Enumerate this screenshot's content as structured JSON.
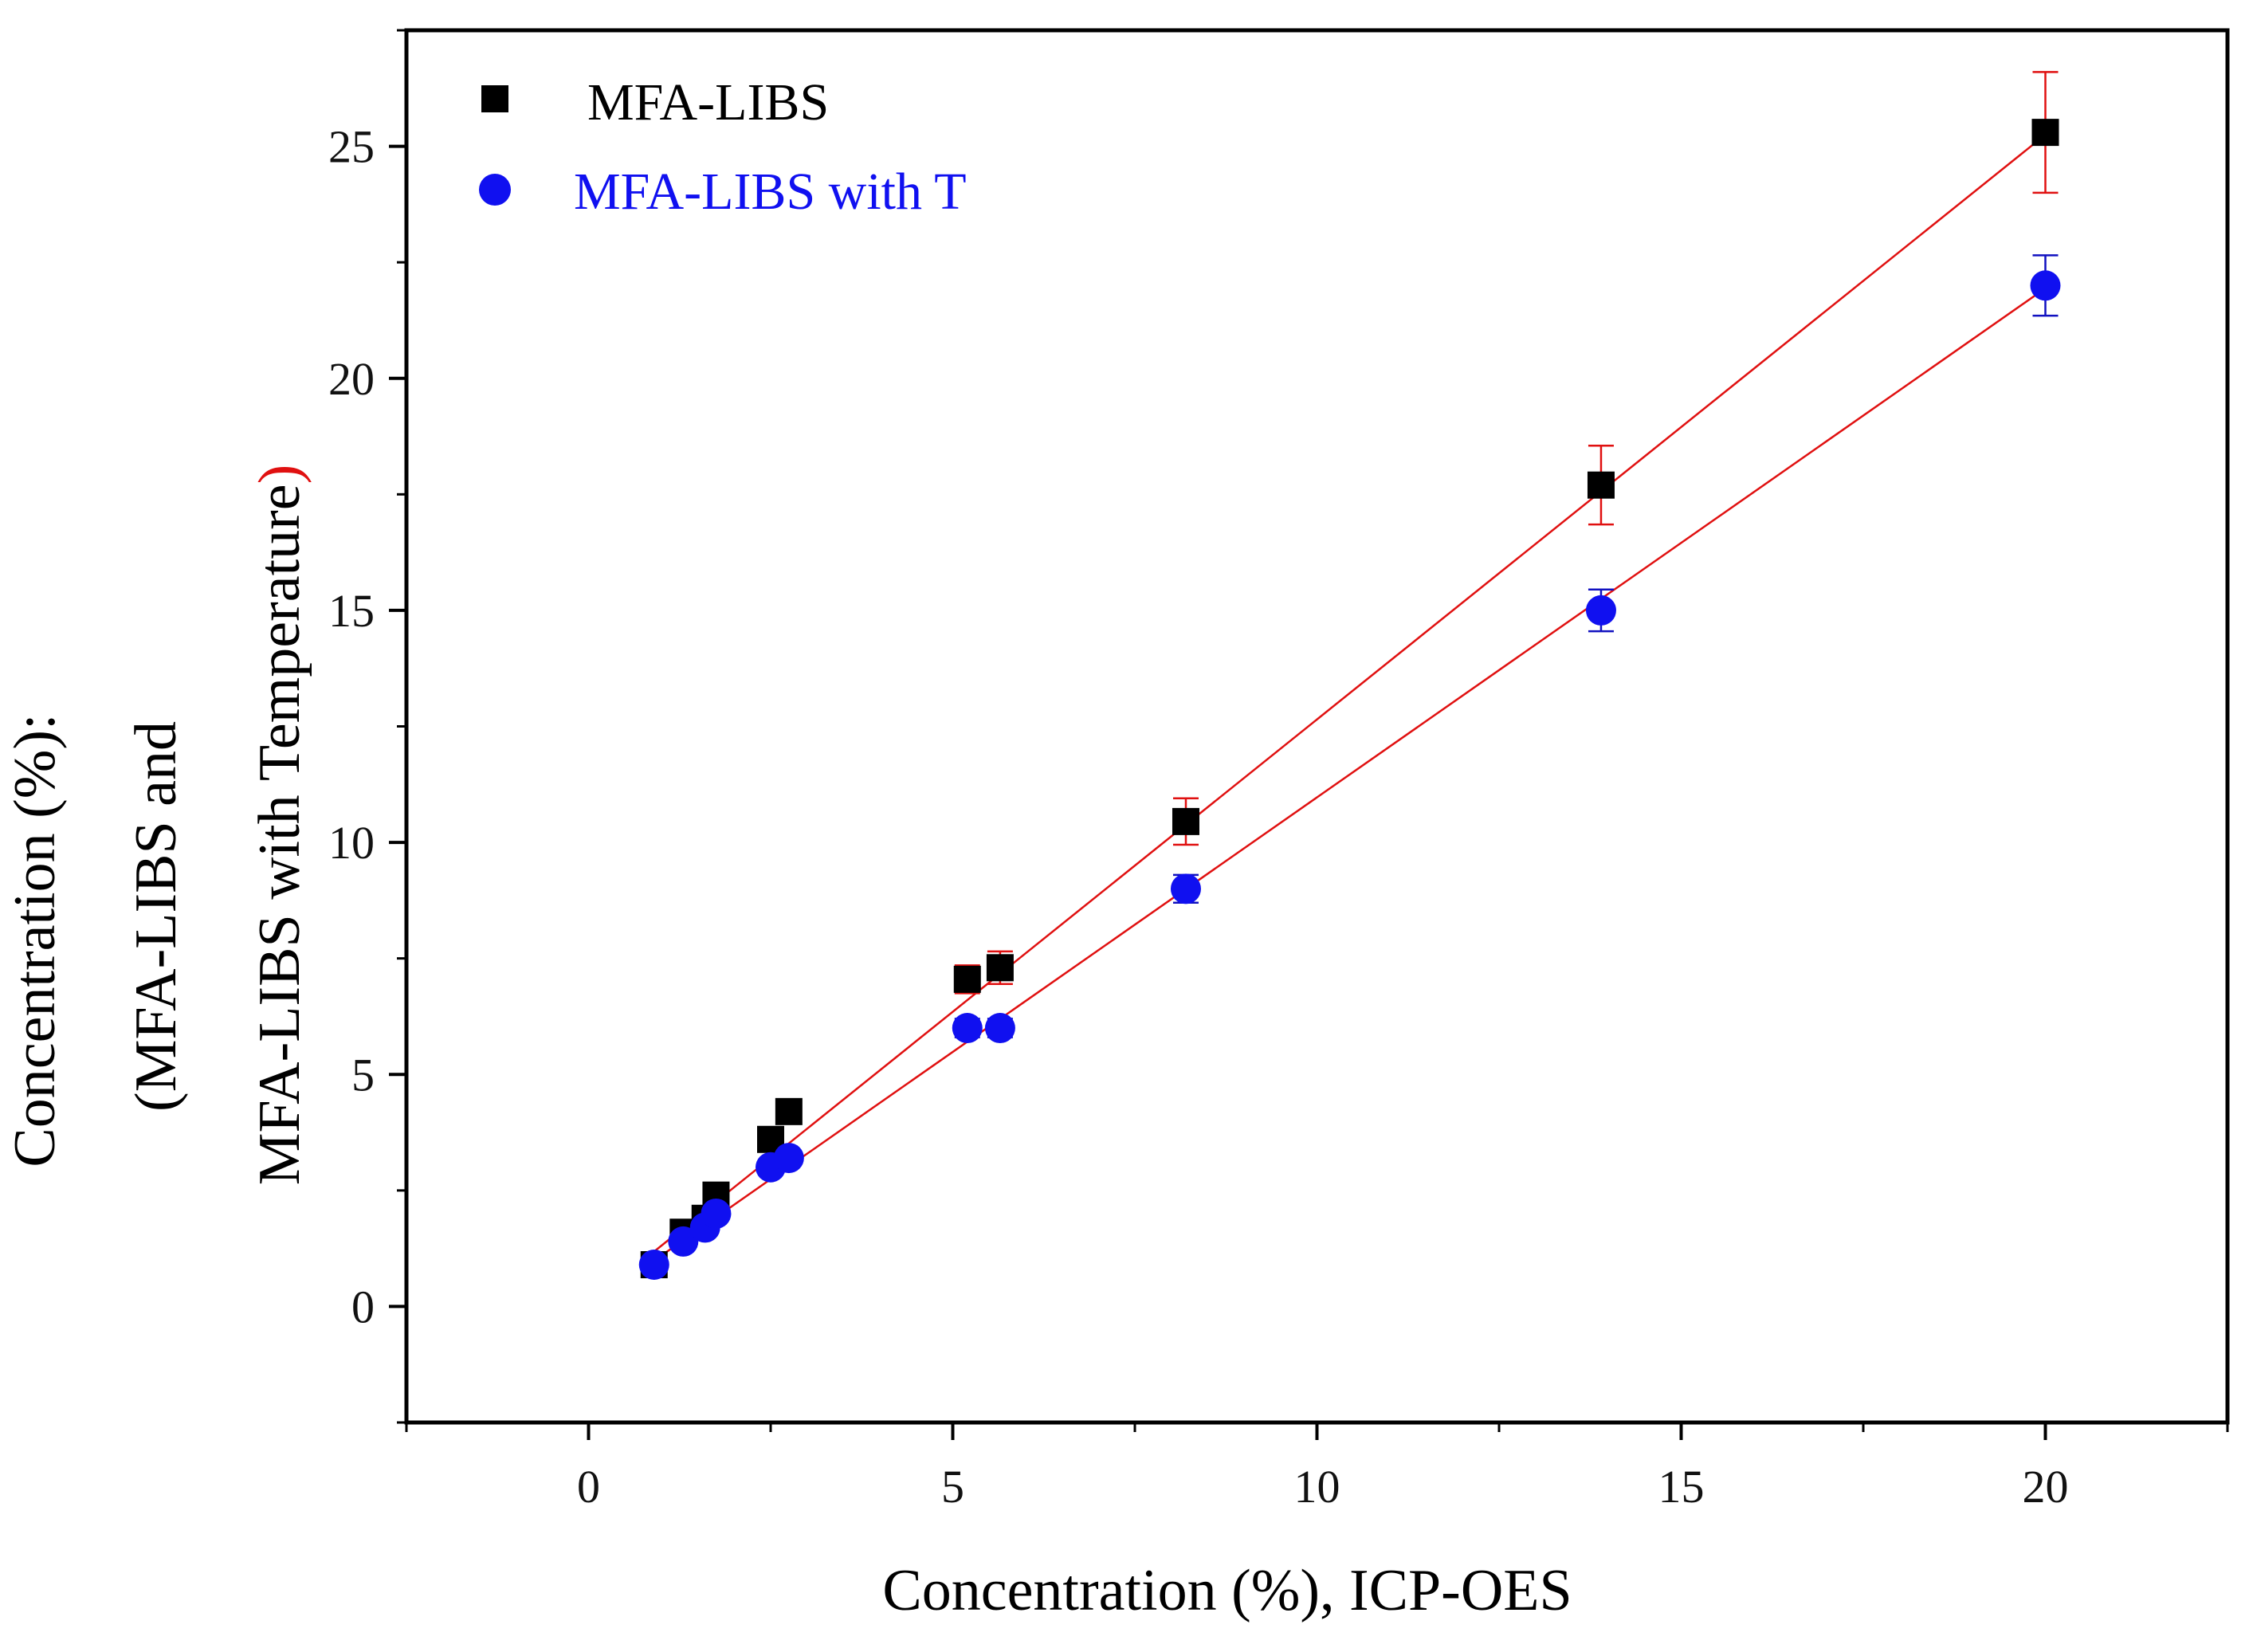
{
  "chart_data": {
    "type": "scatter",
    "title": "",
    "xlabel": "Concentration (%), ICP-OES",
    "ylabel": {
      "line1": "Concentration (%):",
      "line2": "(MFA-LIBS and",
      "line3": "MFA-LIBS with Temperature",
      "line3_close": ")"
    },
    "xlim": [
      -2.5,
      22.5
    ],
    "ylim": [
      -2.5,
      27.5
    ],
    "xticks": [
      0,
      5,
      10,
      15,
      20
    ],
    "yticks": [
      0,
      5,
      10,
      15,
      20,
      25
    ],
    "xtick_labels": [
      "0",
      "5",
      "10",
      "15",
      "20"
    ],
    "ytick_labels": [
      "0",
      "5",
      "10",
      "15",
      "20",
      "25"
    ],
    "x_minor_step": 2.5,
    "y_minor_step": 2.5,
    "grid": false,
    "legend_position": "top-left",
    "series": [
      {
        "name": "MFA-LIBS",
        "marker": "square",
        "color": "#000000",
        "error_bar_color": "#e01010",
        "x": [
          0.9,
          1.3,
          1.6,
          1.75,
          2.5,
          2.75,
          5.2,
          5.65,
          8.2,
          13.9,
          20.0
        ],
        "y": [
          0.9,
          1.6,
          1.9,
          2.4,
          3.6,
          4.2,
          7.05,
          7.3,
          10.45,
          17.7,
          25.3
        ],
        "err": [
          0.15,
          0.15,
          0.15,
          0.2,
          0.2,
          0.25,
          0.3,
          0.35,
          0.5,
          0.85,
          1.3
        ],
        "fit": {
          "slope": 1.26,
          "intercept": 0.05,
          "x_range": [
            0.9,
            20.0
          ]
        }
      },
      {
        "name": "MFA-LIBS with T",
        "marker": "circle",
        "color": "#1010f0",
        "error_bar_color": "#1010c0",
        "x": [
          0.9,
          1.3,
          1.6,
          1.75,
          2.5,
          2.75,
          5.2,
          5.65,
          8.2,
          13.9,
          20.0
        ],
        "y": [
          0.9,
          1.4,
          1.7,
          2.0,
          3.0,
          3.2,
          6.0,
          6.0,
          9.0,
          15.0,
          22.0
        ],
        "err": [
          0.1,
          0.1,
          0.1,
          0.1,
          0.15,
          0.15,
          0.2,
          0.2,
          0.3,
          0.45,
          0.65
        ],
        "fit": {
          "slope": 1.097,
          "intercept": 0.0,
          "x_range": [
            0.9,
            20.0
          ]
        }
      }
    ],
    "fit_line_color": "#e01010"
  }
}
